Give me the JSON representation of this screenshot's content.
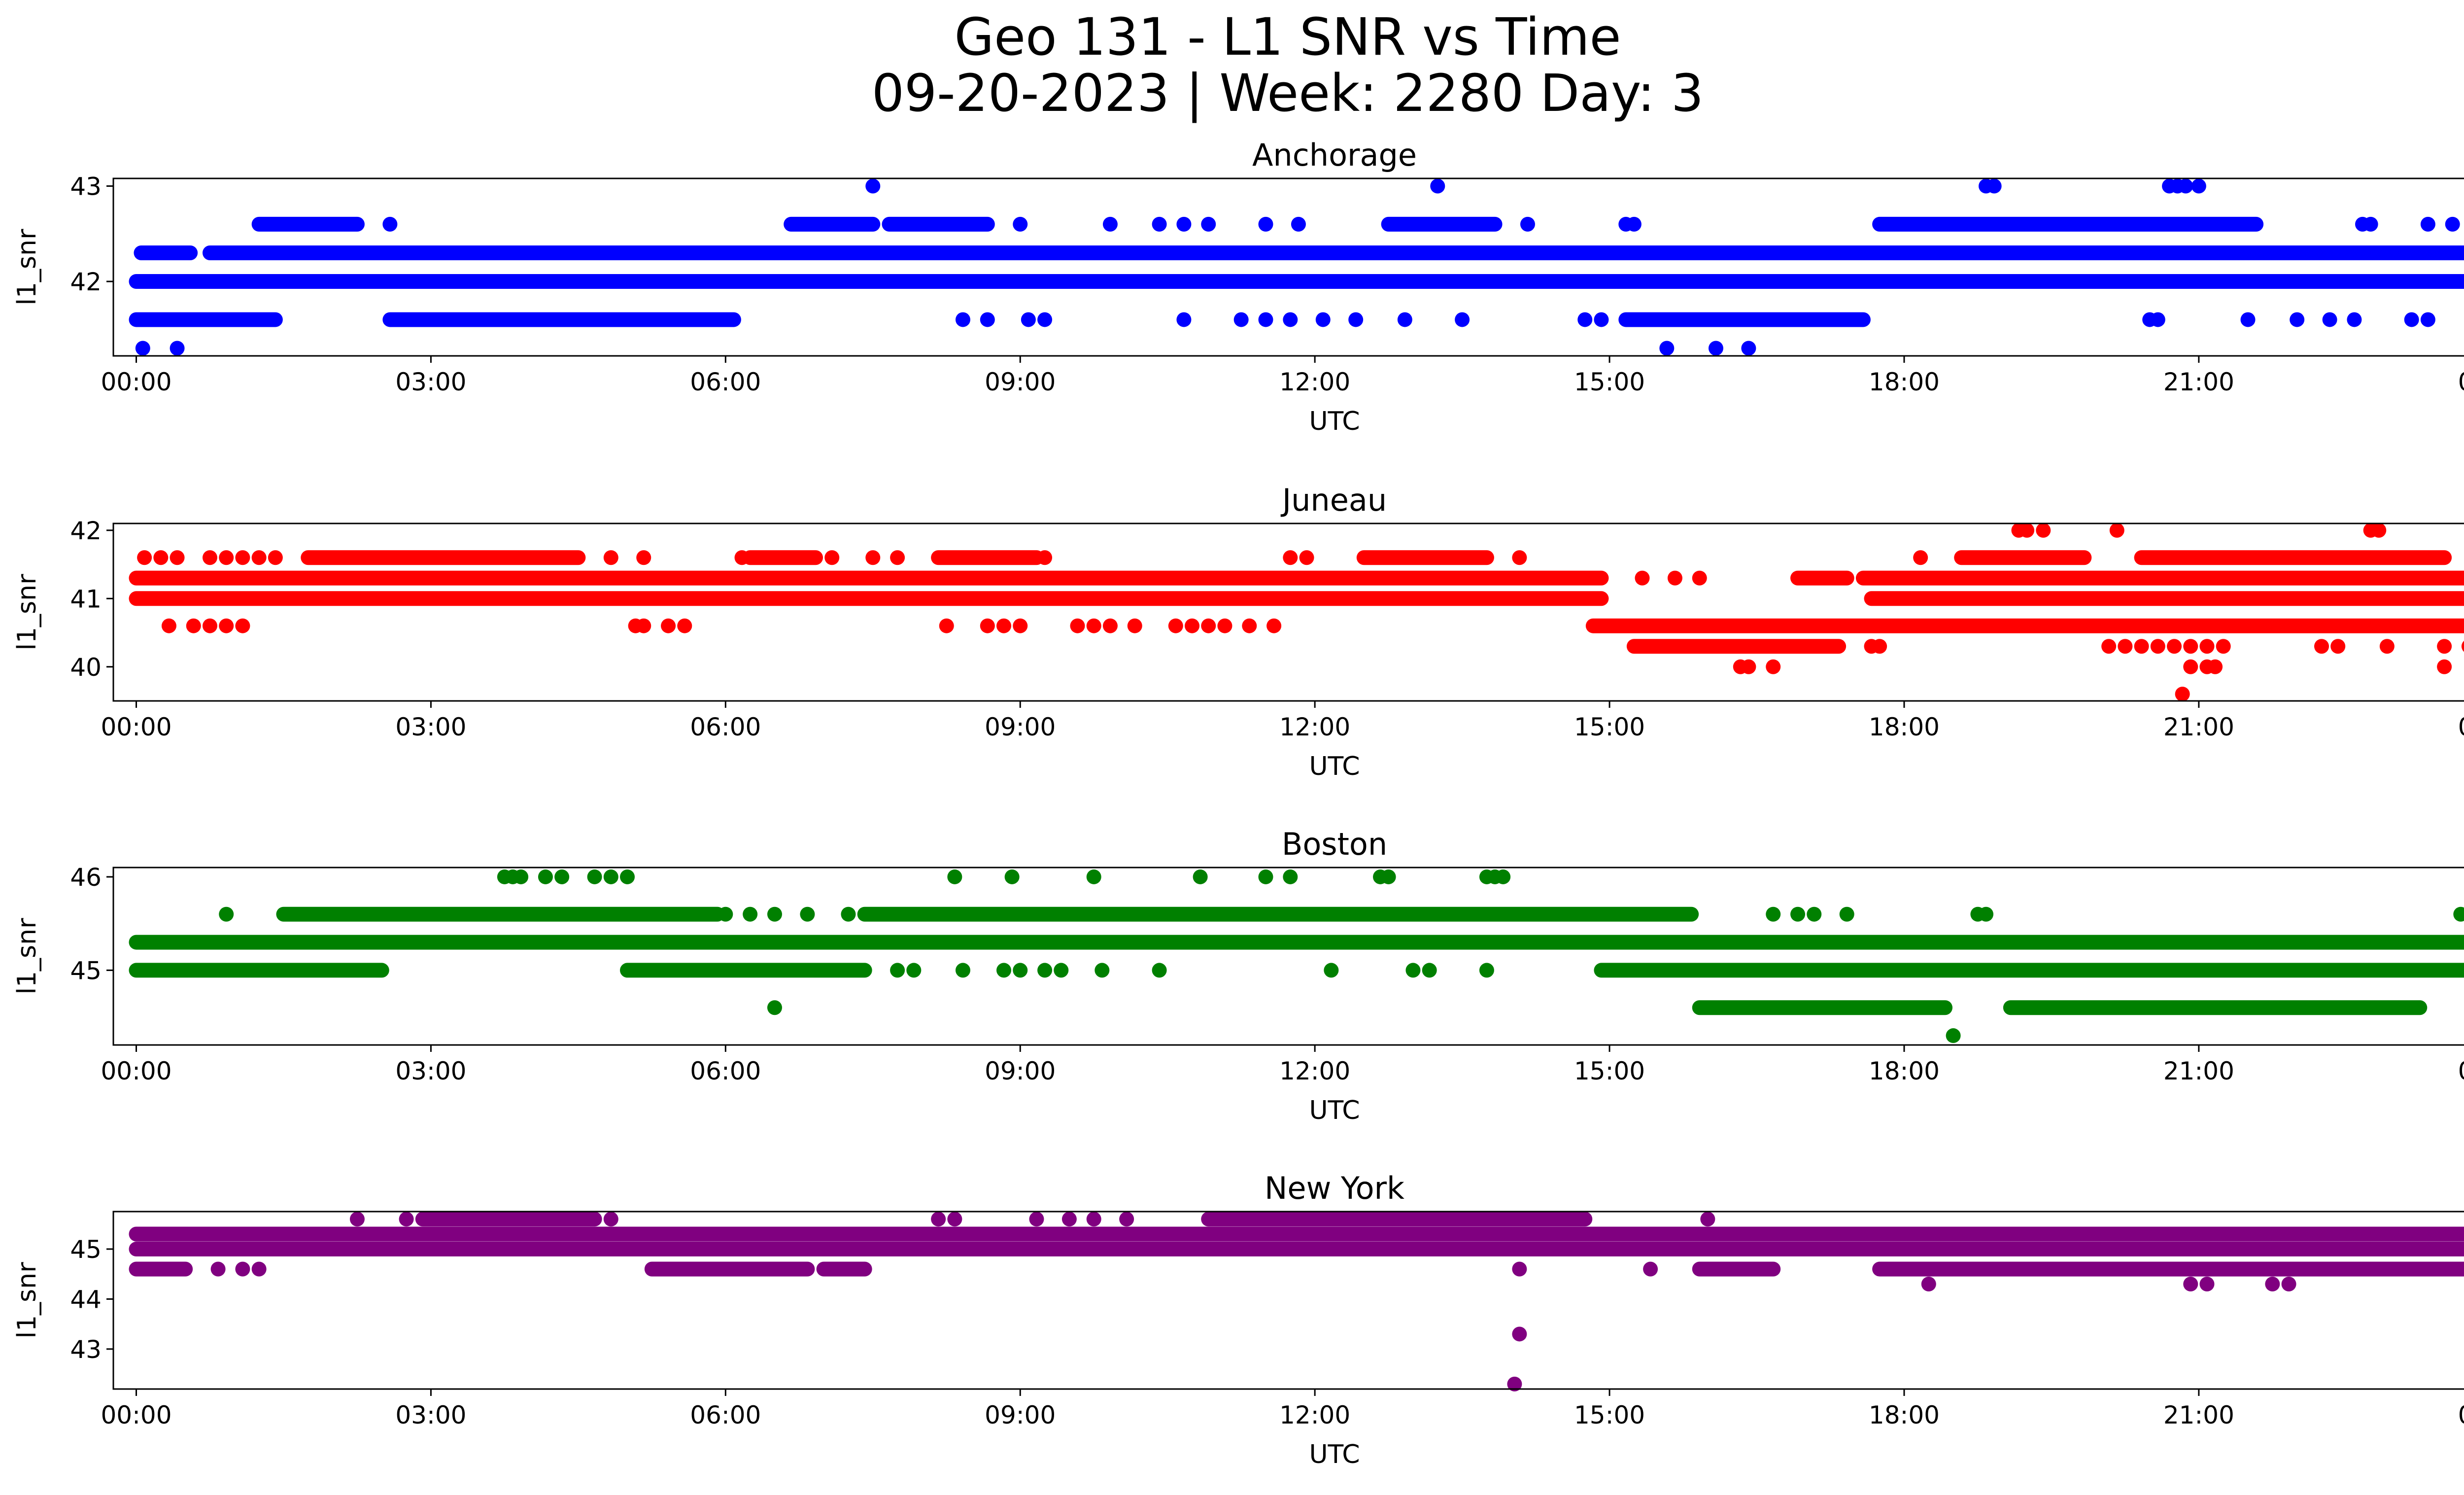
{
  "figure": {
    "title_line1": "Geo 131 - L1 SNR vs Time",
    "title_line2": "09-20-2023 | Week: 2280 Day: 3"
  },
  "chart_data": [
    {
      "type": "scatter",
      "title": "Anchorage",
      "xlabel": "UTC",
      "ylabel": "l1_snr",
      "color": "#0000ff",
      "xlim": [
        "2023-09-19T23:46",
        "2023-09-21T00:38"
      ],
      "ylim": [
        41.22,
        43.08
      ],
      "xticks": [
        "00:00",
        "03:00",
        "06:00",
        "09:00",
        "12:00",
        "15:00",
        "18:00",
        "21:00",
        "00:00"
      ],
      "yticks": [
        42,
        43
      ],
      "grid": false,
      "bands": [
        {
          "y": 42.3,
          "segments": [
            [
              "00:03",
              "00:33"
            ],
            [
              "00:45",
              "23:59"
            ]
          ]
        },
        {
          "y": 42.0,
          "segments": [
            [
              "00:00",
              "23:59"
            ]
          ]
        },
        {
          "y": 42.6,
          "segments": [
            [
              "01:15",
              "02:15"
            ],
            [
              "06:40",
              "07:30"
            ],
            [
              "07:40",
              "08:40"
            ],
            [
              "12:45",
              "13:50"
            ],
            [
              "17:45",
              "21:35"
            ]
          ]
        },
        {
          "y": 41.6,
          "segments": [
            [
              "00:00",
              "01:25"
            ],
            [
              "02:35",
              "06:05"
            ],
            [
              "15:10",
              "17:35"
            ]
          ]
        }
      ],
      "points": [
        {
          "t": "00:04",
          "y": 41.3
        },
        {
          "t": "00:25",
          "y": 41.3
        },
        {
          "t": "00:05",
          "y": 42.3
        },
        {
          "t": "07:30",
          "y": 43.0
        },
        {
          "t": "13:15",
          "y": 43.0
        },
        {
          "t": "18:50",
          "y": 43.0
        },
        {
          "t": "18:55",
          "y": 43.0
        },
        {
          "t": "20:42",
          "y": 43.0
        },
        {
          "t": "20:47",
          "y": 43.0
        },
        {
          "t": "20:52",
          "y": 43.0
        },
        {
          "t": "21:00",
          "y": 43.0
        },
        {
          "t": "15:35",
          "y": 41.3
        },
        {
          "t": "16:05",
          "y": 41.3
        },
        {
          "t": "16:25",
          "y": 41.3
        },
        {
          "t": "02:35",
          "y": 42.6
        },
        {
          "t": "09:00",
          "y": 42.6
        },
        {
          "t": "09:55",
          "y": 42.6
        },
        {
          "t": "10:25",
          "y": 42.6
        },
        {
          "t": "10:40",
          "y": 42.6
        },
        {
          "t": "10:55",
          "y": 42.6
        },
        {
          "t": "11:30",
          "y": 42.6
        },
        {
          "t": "11:50",
          "y": 42.6
        },
        {
          "t": "14:10",
          "y": 42.6
        },
        {
          "t": "15:10",
          "y": 42.6
        },
        {
          "t": "15:15",
          "y": 42.6
        },
        {
          "t": "22:40",
          "y": 42.6
        },
        {
          "t": "22:45",
          "y": 42.6
        },
        {
          "t": "23:20",
          "y": 42.6
        },
        {
          "t": "23:35",
          "y": 42.6
        },
        {
          "t": "23:50",
          "y": 42.6
        },
        {
          "t": "08:25",
          "y": 41.6
        },
        {
          "t": "08:40",
          "y": 41.6
        },
        {
          "t": "09:05",
          "y": 41.6
        },
        {
          "t": "09:15",
          "y": 41.6
        },
        {
          "t": "10:40",
          "y": 41.6
        },
        {
          "t": "11:15",
          "y": 41.6
        },
        {
          "t": "11:30",
          "y": 41.6
        },
        {
          "t": "11:45",
          "y": 41.6
        },
        {
          "t": "12:05",
          "y": 41.6
        },
        {
          "t": "12:25",
          "y": 41.6
        },
        {
          "t": "12:55",
          "y": 41.6
        },
        {
          "t": "13:30",
          "y": 41.6
        },
        {
          "t": "14:45",
          "y": 41.6
        },
        {
          "t": "14:55",
          "y": 41.6
        },
        {
          "t": "20:30",
          "y": 41.6
        },
        {
          "t": "20:35",
          "y": 41.6
        },
        {
          "t": "21:30",
          "y": 41.6
        },
        {
          "t": "22:00",
          "y": 41.6
        },
        {
          "t": "22:20",
          "y": 41.6
        },
        {
          "t": "22:35",
          "y": 41.6
        },
        {
          "t": "23:10",
          "y": 41.6
        },
        {
          "t": "23:20",
          "y": 41.6
        }
      ]
    },
    {
      "type": "scatter",
      "title": "Juneau",
      "xlabel": "UTC",
      "ylabel": "l1_snr",
      "color": "#ff0000",
      "xlim": [
        "2023-09-19T23:46",
        "2023-09-21T00:38"
      ],
      "ylim": [
        39.5,
        42.1
      ],
      "xticks": [
        "00:00",
        "03:00",
        "06:00",
        "09:00",
        "12:00",
        "15:00",
        "18:00",
        "21:00",
        "00:00"
      ],
      "yticks": [
        40,
        41,
        42
      ],
      "grid": false,
      "bands": [
        {
          "y": 41.3,
          "segments": [
            [
              "00:00",
              "14:55"
            ],
            [
              "16:55",
              "17:25"
            ],
            [
              "17:35",
              "23:59"
            ]
          ]
        },
        {
          "y": 41.0,
          "segments": [
            [
              "00:00",
              "14:55"
            ],
            [
              "17:40",
              "23:59"
            ]
          ]
        },
        {
          "y": 40.6,
          "segments": [
            [
              "14:50",
              "23:59"
            ]
          ]
        },
        {
          "y": 41.6,
          "segments": [
            [
              "01:45",
              "04:30"
            ],
            [
              "06:15",
              "06:55"
            ],
            [
              "08:10",
              "09:10"
            ],
            [
              "12:30",
              "13:45"
            ],
            [
              "18:35",
              "19:50"
            ],
            [
              "20:25",
              "23:30"
            ]
          ]
        },
        {
          "y": 40.3,
          "segments": [
            [
              "15:15",
              "17:20"
            ]
          ]
        }
      ],
      "points": [
        {
          "t": "00:05",
          "y": 41.6
        },
        {
          "t": "00:15",
          "y": 41.6
        },
        {
          "t": "00:25",
          "y": 41.6
        },
        {
          "t": "00:45",
          "y": 41.6
        },
        {
          "t": "00:55",
          "y": 41.6
        },
        {
          "t": "01:05",
          "y": 41.6
        },
        {
          "t": "01:15",
          "y": 41.6
        },
        {
          "t": "01:25",
          "y": 41.6
        },
        {
          "t": "04:50",
          "y": 41.6
        },
        {
          "t": "05:10",
          "y": 41.6
        },
        {
          "t": "06:10",
          "y": 41.6
        },
        {
          "t": "07:05",
          "y": 41.6
        },
        {
          "t": "07:30",
          "y": 41.6
        },
        {
          "t": "07:45",
          "y": 41.6
        },
        {
          "t": "09:15",
          "y": 41.6
        },
        {
          "t": "11:45",
          "y": 41.6
        },
        {
          "t": "11:55",
          "y": 41.6
        },
        {
          "t": "14:05",
          "y": 41.6
        },
        {
          "t": "18:10",
          "y": 41.6
        },
        {
          "t": "00:20",
          "y": 40.6
        },
        {
          "t": "00:35",
          "y": 40.6
        },
        {
          "t": "00:45",
          "y": 40.6
        },
        {
          "t": "00:55",
          "y": 40.6
        },
        {
          "t": "01:05",
          "y": 40.6
        },
        {
          "t": "05:05",
          "y": 40.6
        },
        {
          "t": "05:10",
          "y": 40.6
        },
        {
          "t": "05:25",
          "y": 40.6
        },
        {
          "t": "05:35",
          "y": 40.6
        },
        {
          "t": "08:15",
          "y": 40.6
        },
        {
          "t": "08:40",
          "y": 40.6
        },
        {
          "t": "08:50",
          "y": 40.6
        },
        {
          "t": "09:00",
          "y": 40.6
        },
        {
          "t": "09:35",
          "y": 40.6
        },
        {
          "t": "09:45",
          "y": 40.6
        },
        {
          "t": "09:55",
          "y": 40.6
        },
        {
          "t": "10:10",
          "y": 40.6
        },
        {
          "t": "10:35",
          "y": 40.6
        },
        {
          "t": "10:45",
          "y": 40.6
        },
        {
          "t": "10:55",
          "y": 40.6
        },
        {
          "t": "11:05",
          "y": 40.6
        },
        {
          "t": "11:20",
          "y": 40.6
        },
        {
          "t": "11:35",
          "y": 40.6
        },
        {
          "t": "15:20",
          "y": 41.3
        },
        {
          "t": "15:40",
          "y": 41.3
        },
        {
          "t": "15:55",
          "y": 41.3
        },
        {
          "t": "16:20",
          "y": 40.0
        },
        {
          "t": "16:25",
          "y": 40.0
        },
        {
          "t": "16:40",
          "y": 40.0
        },
        {
          "t": "17:40",
          "y": 40.3
        },
        {
          "t": "17:45",
          "y": 40.3
        },
        {
          "t": "20:05",
          "y": 40.3
        },
        {
          "t": "20:15",
          "y": 40.3
        },
        {
          "t": "20:25",
          "y": 40.3
        },
        {
          "t": "20:35",
          "y": 40.3
        },
        {
          "t": "20:45",
          "y": 40.3
        },
        {
          "t": "20:55",
          "y": 40.3
        },
        {
          "t": "21:05",
          "y": 40.3
        },
        {
          "t": "21:15",
          "y": 40.3
        },
        {
          "t": "22:15",
          "y": 40.3
        },
        {
          "t": "22:25",
          "y": 40.3
        },
        {
          "t": "22:55",
          "y": 40.3
        },
        {
          "t": "23:30",
          "y": 40.3
        },
        {
          "t": "23:45",
          "y": 40.3
        },
        {
          "t": "23:55",
          "y": 40.3
        },
        {
          "t": "20:55",
          "y": 40.0
        },
        {
          "t": "21:05",
          "y": 40.0
        },
        {
          "t": "21:10",
          "y": 40.0
        },
        {
          "t": "23:30",
          "y": 40.0
        },
        {
          "t": "20:50",
          "y": 39.6
        },
        {
          "t": "19:10",
          "y": 42.0
        },
        {
          "t": "19:15",
          "y": 42.0
        },
        {
          "t": "19:25",
          "y": 42.0
        },
        {
          "t": "20:10",
          "y": 42.0
        },
        {
          "t": "22:45",
          "y": 42.0
        },
        {
          "t": "22:50",
          "y": 42.0
        }
      ]
    },
    {
      "type": "scatter",
      "title": "Boston",
      "xlabel": "UTC",
      "ylabel": "l1_snr",
      "color": "#008000",
      "xlim": [
        "2023-09-19T23:46",
        "2023-09-21T00:38"
      ],
      "ylim": [
        44.2,
        46.1
      ],
      "xticks": [
        "00:00",
        "03:00",
        "06:00",
        "09:00",
        "12:00",
        "15:00",
        "18:00",
        "21:00",
        "00:00"
      ],
      "yticks": [
        45,
        46
      ],
      "grid": false,
      "bands": [
        {
          "y": 45.3,
          "segments": [
            [
              "00:00",
              "23:59"
            ]
          ]
        },
        {
          "y": 45.0,
          "segments": [
            [
              "00:00",
              "02:30"
            ],
            [
              "05:00",
              "07:25"
            ],
            [
              "14:55",
              "23:59"
            ]
          ]
        },
        {
          "y": 45.6,
          "segments": [
            [
              "01:30",
              "05:55"
            ],
            [
              "07:25",
              "15:50"
            ]
          ]
        },
        {
          "y": 44.6,
          "segments": [
            [
              "15:55",
              "18:25"
            ],
            [
              "19:05",
              "23:15"
            ]
          ]
        }
      ],
      "points": [
        {
          "t": "00:55",
          "y": 45.6
        },
        {
          "t": "06:00",
          "y": 45.6
        },
        {
          "t": "06:15",
          "y": 45.6
        },
        {
          "t": "06:30",
          "y": 45.6
        },
        {
          "t": "06:50",
          "y": 45.6
        },
        {
          "t": "07:15",
          "y": 45.6
        },
        {
          "t": "16:40",
          "y": 45.6
        },
        {
          "t": "16:55",
          "y": 45.6
        },
        {
          "t": "17:05",
          "y": 45.6
        },
        {
          "t": "17:25",
          "y": 45.6
        },
        {
          "t": "18:45",
          "y": 45.6
        },
        {
          "t": "18:50",
          "y": 45.6
        },
        {
          "t": "23:40",
          "y": 45.6
        },
        {
          "t": "23:50",
          "y": 45.6
        },
        {
          "t": "03:45",
          "y": 46.0
        },
        {
          "t": "03:50",
          "y": 46.0
        },
        {
          "t": "03:55",
          "y": 46.0
        },
        {
          "t": "04:10",
          "y": 46.0
        },
        {
          "t": "04:20",
          "y": 46.0
        },
        {
          "t": "04:40",
          "y": 46.0
        },
        {
          "t": "04:50",
          "y": 46.0
        },
        {
          "t": "05:00",
          "y": 46.0
        },
        {
          "t": "08:20",
          "y": 46.0
        },
        {
          "t": "08:55",
          "y": 46.0
        },
        {
          "t": "09:45",
          "y": 46.0
        },
        {
          "t": "10:50",
          "y": 46.0
        },
        {
          "t": "11:30",
          "y": 46.0
        },
        {
          "t": "11:45",
          "y": 46.0
        },
        {
          "t": "12:40",
          "y": 46.0
        },
        {
          "t": "12:45",
          "y": 46.0
        },
        {
          "t": "13:45",
          "y": 46.0
        },
        {
          "t": "13:50",
          "y": 46.0
        },
        {
          "t": "13:55",
          "y": 46.0
        },
        {
          "t": "07:45",
          "y": 45.0
        },
        {
          "t": "07:55",
          "y": 45.0
        },
        {
          "t": "08:25",
          "y": 45.0
        },
        {
          "t": "08:50",
          "y": 45.0
        },
        {
          "t": "09:00",
          "y": 45.0
        },
        {
          "t": "09:15",
          "y": 45.0
        },
        {
          "t": "09:25",
          "y": 45.0
        },
        {
          "t": "09:50",
          "y": 45.0
        },
        {
          "t": "10:25",
          "y": 45.0
        },
        {
          "t": "12:10",
          "y": 45.0
        },
        {
          "t": "13:00",
          "y": 45.0
        },
        {
          "t": "13:10",
          "y": 45.0
        },
        {
          "t": "13:45",
          "y": 45.0
        },
        {
          "t": "06:30",
          "y": 44.6
        },
        {
          "t": "18:30",
          "y": 44.3
        }
      ]
    },
    {
      "type": "scatter",
      "title": "New York",
      "xlabel": "UTC",
      "ylabel": "l1_snr",
      "color": "#800080",
      "xlim": [
        "2023-09-19T23:46",
        "2023-09-21T00:38"
      ],
      "ylim": [
        42.2,
        45.75
      ],
      "xticks": [
        "00:00",
        "03:00",
        "06:00",
        "09:00",
        "12:00",
        "15:00",
        "18:00",
        "21:00",
        "00:00"
      ],
      "yticks": [
        43,
        44,
        45
      ],
      "grid": false,
      "bands": [
        {
          "y": 45.3,
          "segments": [
            [
              "00:00",
              "23:59"
            ]
          ]
        },
        {
          "y": 45.0,
          "segments": [
            [
              "00:00",
              "23:59"
            ]
          ]
        },
        {
          "y": 44.6,
          "segments": [
            [
              "00:00",
              "00:30"
            ],
            [
              "05:15",
              "06:50"
            ],
            [
              "07:00",
              "07:25"
            ],
            [
              "15:55",
              "16:40"
            ],
            [
              "17:45",
              "23:45"
            ]
          ]
        },
        {
          "y": 45.6,
          "segments": [
            [
              "02:55",
              "04:40"
            ],
            [
              "10:55",
              "14:45"
            ]
          ]
        }
      ],
      "points": [
        {
          "t": "02:15",
          "y": 45.6
        },
        {
          "t": "02:45",
          "y": 45.6
        },
        {
          "t": "04:50",
          "y": 45.6
        },
        {
          "t": "08:10",
          "y": 45.6
        },
        {
          "t": "08:20",
          "y": 45.6
        },
        {
          "t": "09:10",
          "y": 45.6
        },
        {
          "t": "09:30",
          "y": 45.6
        },
        {
          "t": "09:45",
          "y": 45.6
        },
        {
          "t": "10:05",
          "y": 45.6
        },
        {
          "t": "16:00",
          "y": 45.6
        },
        {
          "t": "00:50",
          "y": 44.6
        },
        {
          "t": "01:05",
          "y": 44.6
        },
        {
          "t": "01:15",
          "y": 44.6
        },
        {
          "t": "14:05",
          "y": 44.6
        },
        {
          "t": "15:25",
          "y": 44.6
        },
        {
          "t": "14:05",
          "y": 43.3
        },
        {
          "t": "14:02",
          "y": 42.3
        },
        {
          "t": "18:15",
          "y": 44.3
        },
        {
          "t": "20:55",
          "y": 44.3
        },
        {
          "t": "21:05",
          "y": 44.3
        },
        {
          "t": "21:45",
          "y": 44.3
        },
        {
          "t": "21:55",
          "y": 44.3
        }
      ]
    }
  ]
}
